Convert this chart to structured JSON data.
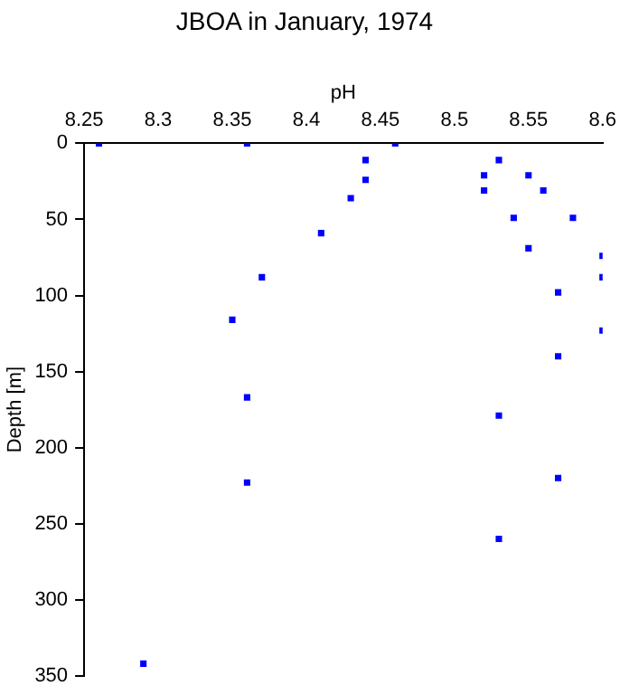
{
  "chart_data": {
    "type": "scatter",
    "title": "JBOA in January, 1974",
    "xlabel": "pH",
    "ylabel": "Depth [m]",
    "x": [
      8.26,
      8.36,
      8.46,
      8.44,
      8.44,
      8.43,
      8.41,
      8.37,
      8.52,
      8.52,
      8.53,
      8.55,
      8.56,
      8.54,
      8.58,
      8.55,
      8.6,
      8.6,
      8.57,
      8.35,
      8.6,
      8.57,
      8.36,
      8.53,
      8.36,
      8.57,
      8.53,
      8.29
    ],
    "values": [
      0,
      0,
      0,
      11,
      24,
      36,
      59,
      88,
      21,
      31,
      11,
      21,
      31,
      49,
      49,
      69,
      74,
      88,
      98,
      116,
      123,
      140,
      167,
      179,
      223,
      220,
      260,
      342
    ],
    "color": "#0000ff",
    "marker": "square",
    "grid": false,
    "legend": false,
    "xlim": [
      8.25,
      8.6
    ],
    "xticks": [
      8.25,
      8.3,
      8.35,
      8.4,
      8.45,
      8.5,
      8.55,
      8.6
    ],
    "ylim": [
      350,
      0
    ],
    "yticks": [
      0,
      50,
      100,
      150,
      200,
      250,
      300,
      350
    ]
  }
}
